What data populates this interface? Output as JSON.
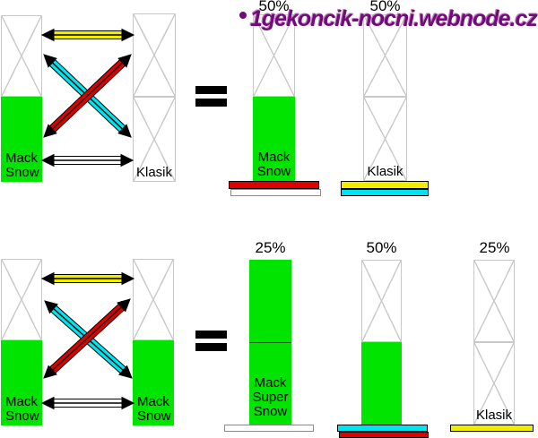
{
  "watermark": {
    "bullet": "•",
    "text": "1gekoncik-nocni.webnode.cz"
  },
  "colors": {
    "green": "#00e400",
    "yellow": "#f1ed00",
    "cyan": "#00e4ef",
    "red": "#df0000",
    "white": "#ffffff",
    "lattice": "#c9c9c9",
    "watermark": "#700d78"
  },
  "cross_top": {
    "parent_left": {
      "label": "Mack\nSnow"
    },
    "parent_right": {
      "label": "Klasik"
    },
    "arrow_colors": [
      "yellow",
      "cyan",
      "red",
      "white"
    ],
    "equals": "=",
    "results": [
      {
        "percent": "50%",
        "label": "Mack\nSnow",
        "base_strips": [
          "red",
          "white"
        ]
      },
      {
        "percent": "50%",
        "label": "Klasik",
        "base_strips": [
          "yellow",
          "cyan"
        ]
      }
    ]
  },
  "cross_bottom": {
    "parent_left": {
      "label": "Mack\nSnow"
    },
    "parent_right": {
      "label": "Mack\nSnow"
    },
    "arrow_colors": [
      "yellow",
      "cyan",
      "red",
      "white"
    ],
    "equals": "=",
    "results": [
      {
        "percent": "25%",
        "label": "Mack\nSuper\nSnow",
        "base_strips": [
          "white"
        ]
      },
      {
        "percent": "50%",
        "label": "",
        "base_strips": [
          "cyan",
          "red"
        ]
      },
      {
        "percent": "25%",
        "label": "Klasik",
        "base_strips": [
          "yellow"
        ]
      }
    ]
  }
}
